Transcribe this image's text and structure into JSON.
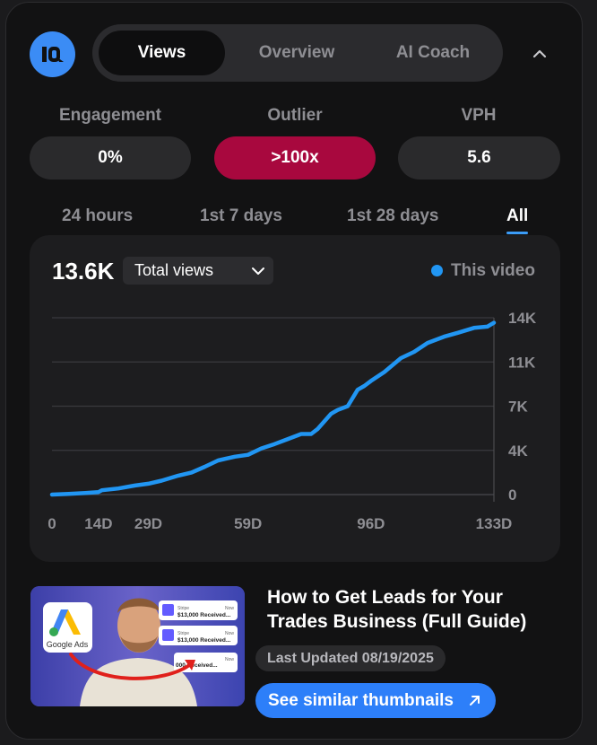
{
  "tabs": [
    {
      "label": "Views",
      "active": true
    },
    {
      "label": "Overview",
      "active": false
    },
    {
      "label": "AI Coach",
      "active": false
    }
  ],
  "metrics": [
    {
      "label": "Engagement",
      "value": "0%"
    },
    {
      "label": "Outlier",
      "value": ">100x"
    },
    {
      "label": "VPH",
      "value": "5.6"
    }
  ],
  "time_ranges": [
    "24 hours",
    "1st 7 days",
    "1st 28 days",
    "All"
  ],
  "active_range": "All",
  "chart": {
    "total": "13.6K",
    "metric_select": "Total views",
    "legend": "This video",
    "series_color": "#2196f3"
  },
  "chart_data": {
    "type": "line",
    "series": [
      {
        "name": "This video",
        "x": [
          0,
          5,
          10,
          14,
          15,
          20,
          25,
          29,
          33,
          38,
          42,
          46,
          50,
          55,
          59,
          63,
          67,
          71,
          75,
          78,
          80,
          84,
          86,
          89,
          92,
          94,
          96,
          100,
          105,
          109,
          113,
          118,
          122,
          127,
          131,
          133
        ],
        "y": [
          0,
          50,
          130,
          200,
          340,
          480,
          720,
          860,
          1100,
          1500,
          1750,
          2200,
          2700,
          3000,
          3150,
          3650,
          4000,
          4400,
          4800,
          4800,
          5200,
          6400,
          6700,
          7000,
          8300,
          8600,
          9000,
          9700,
          10800,
          11300,
          12000,
          12500,
          12800,
          13200,
          13300,
          13600
        ]
      }
    ],
    "xticks": [
      "0",
      "14D",
      "29D",
      "59D",
      "96D",
      "133D"
    ],
    "yticks": [
      "0",
      "4K",
      "7K",
      "11K",
      "14K"
    ],
    "ylim": [
      0,
      14000
    ],
    "grid": true,
    "legend_position": "top-right"
  },
  "video": {
    "title": "How to Get Leads for Your Trades Business (Full Guide)",
    "last_updated": "Last Updated 08/19/2025",
    "similar_button": "See similar thumbnails",
    "thumbnail": {
      "badge": "Google Ads",
      "cards": [
        {
          "source": "Stripe",
          "text": "$13,000 Received...",
          "time": "Now"
        },
        {
          "source": "Stripe",
          "text": "$13,000 Received...",
          "time": "Now"
        },
        {
          "source": "",
          "text": "000 Received...",
          "time": "Now"
        }
      ]
    }
  }
}
